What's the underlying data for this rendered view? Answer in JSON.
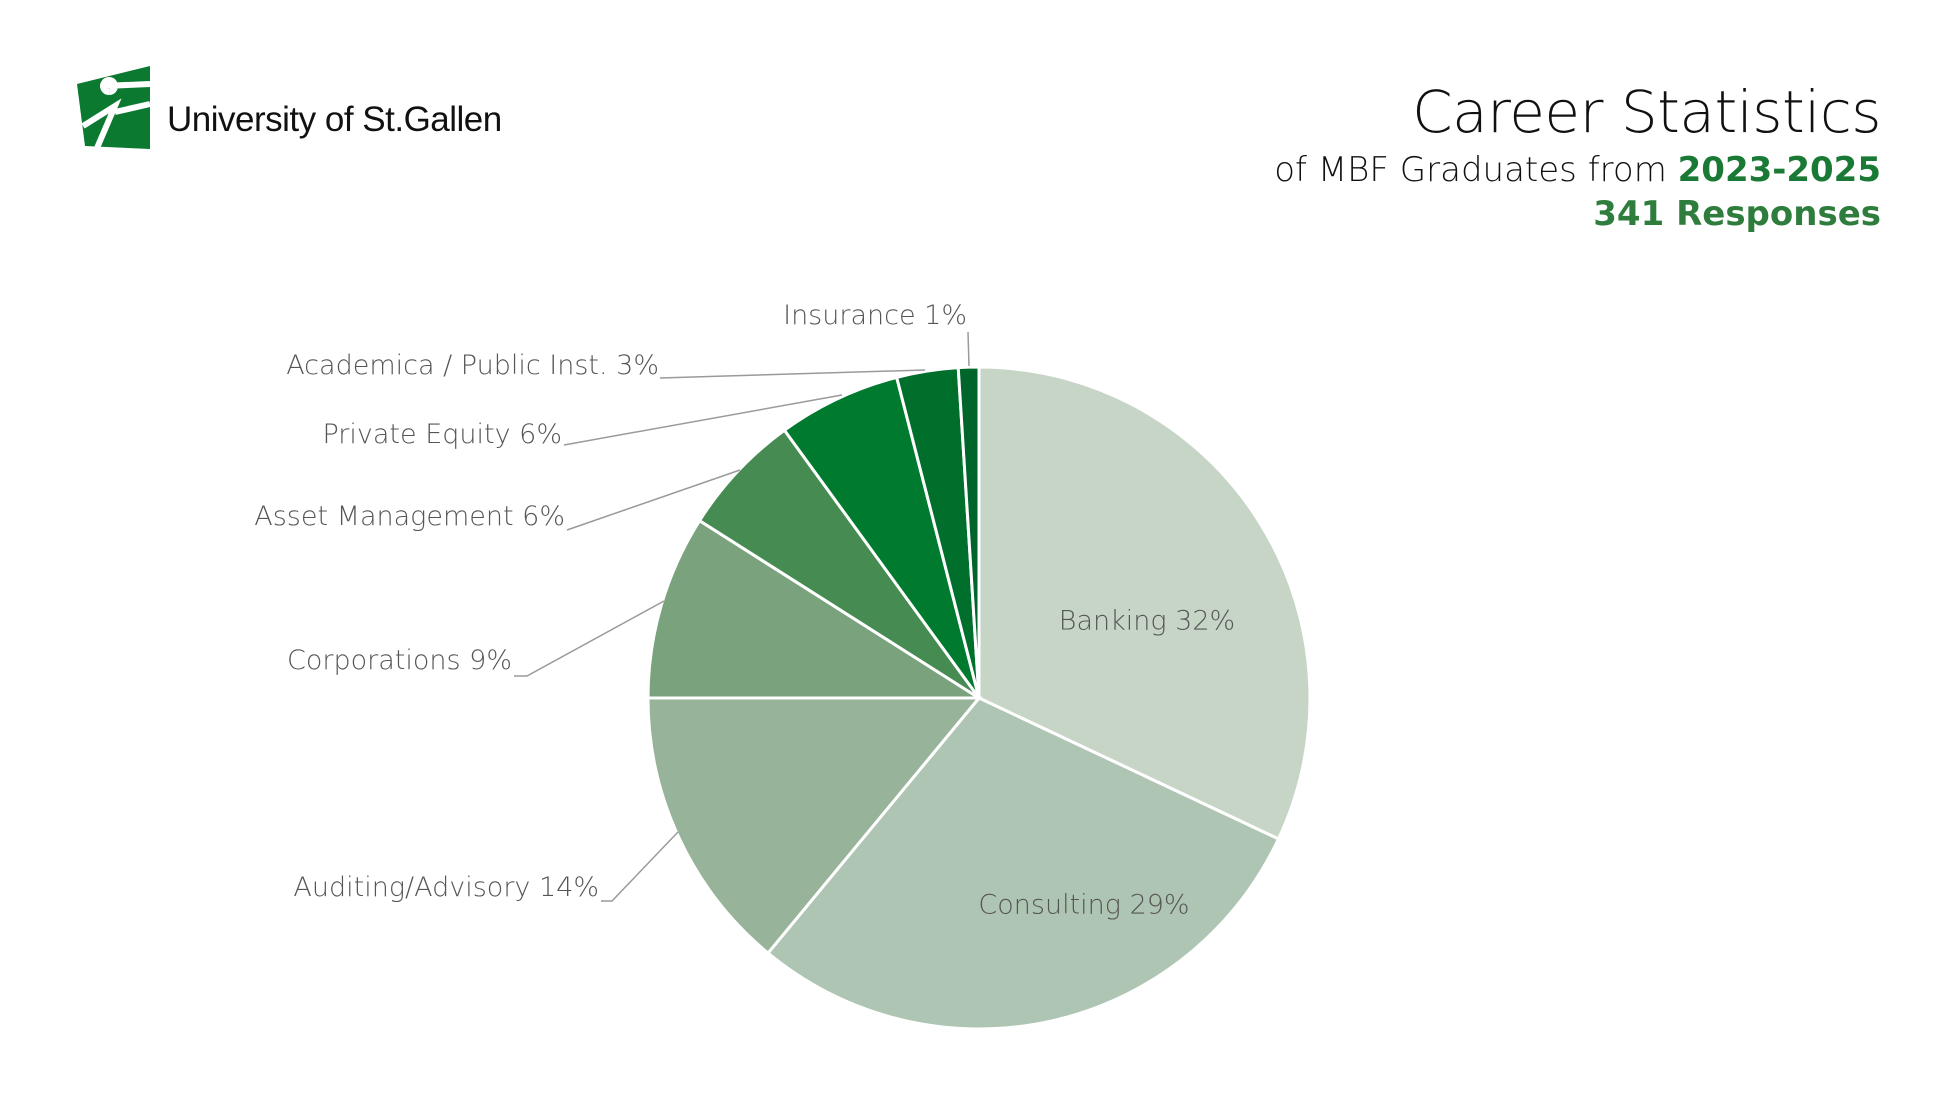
{
  "logo": {
    "text": "University of St.Gallen"
  },
  "header": {
    "title": "Career Statistics",
    "subtitle_prefix": "of MBF Graduates from",
    "subtitle_years": "2023-2025",
    "responses": "341 Responses"
  },
  "chart_data": {
    "type": "pie",
    "title": "Career Statistics",
    "start": "top, clockwise",
    "slices": [
      {
        "label": "Banking 32%",
        "name": "Banking",
        "value": 32,
        "color": "#c7d5c7"
      },
      {
        "label": "Consulting 29%",
        "name": "Consulting",
        "value": 29,
        "color": "#afc5b3"
      },
      {
        "label": "Auditing/Advisory 14%",
        "name": "Auditing/Advisory",
        "value": 14,
        "color": "#97b399"
      },
      {
        "label": "Corporations 9%",
        "name": "Corporations",
        "value": 9,
        "color": "#7aa37d"
      },
      {
        "label": "Asset Management 6%",
        "name": "Asset Management",
        "value": 6,
        "color": "#468b52"
      },
      {
        "label": "Private Equity 6%",
        "name": "Private Equity",
        "value": 6,
        "color": "#007a2e"
      },
      {
        "label": "Academica / Public Inst. 3%",
        "name": "Academica / Public Inst.",
        "value": 3,
        "color": "#006f2c"
      },
      {
        "label": "Insurance 1%",
        "name": "Insurance",
        "value": 1,
        "color": "#00652a"
      }
    ]
  }
}
